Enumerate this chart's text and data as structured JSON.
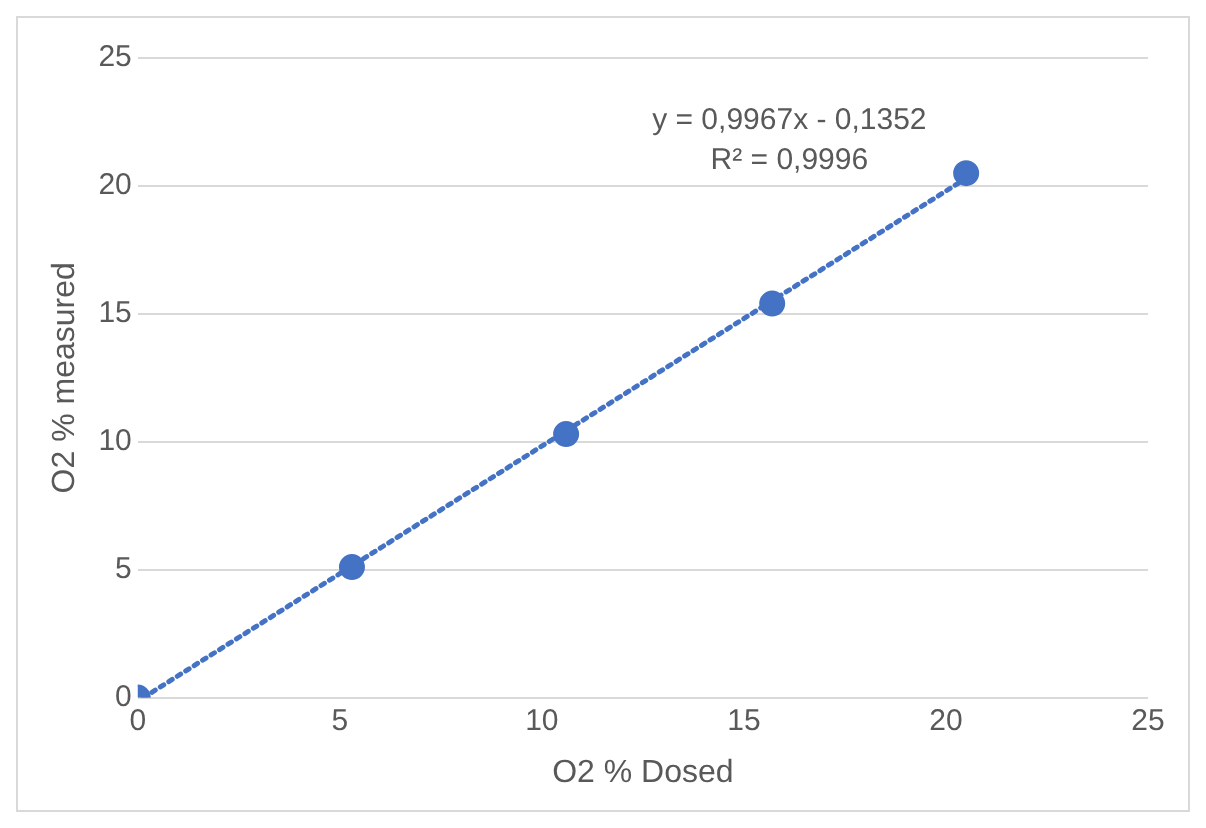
{
  "chart_data": {
    "type": "scatter",
    "xlabel": "O2 % Dosed",
    "ylabel": "O2 % measured",
    "xlim": [
      0,
      25
    ],
    "xticks": [
      0,
      5,
      10,
      15,
      20,
      25
    ],
    "ylim": [
      0,
      25
    ],
    "yticks": [
      0,
      5,
      10,
      15,
      20,
      25
    ],
    "grid": "y",
    "legend": false,
    "annotations": [
      "y = 0,9967x - 0,1352",
      "R² = 0,9996"
    ],
    "series": [
      {
        "type": "scatter",
        "color": "#4472c4",
        "marker": "circle",
        "x": [
          0,
          5.3,
          10.6,
          15.7,
          20.5
        ],
        "values": [
          0,
          5.1,
          10.3,
          15.4,
          20.5
        ]
      },
      {
        "type": "line",
        "color": "#4472c4",
        "marker": "none",
        "line_style": "dotted",
        "x": [
          0.14,
          20.5
        ],
        "values": [
          0,
          20.3
        ]
      }
    ]
  }
}
